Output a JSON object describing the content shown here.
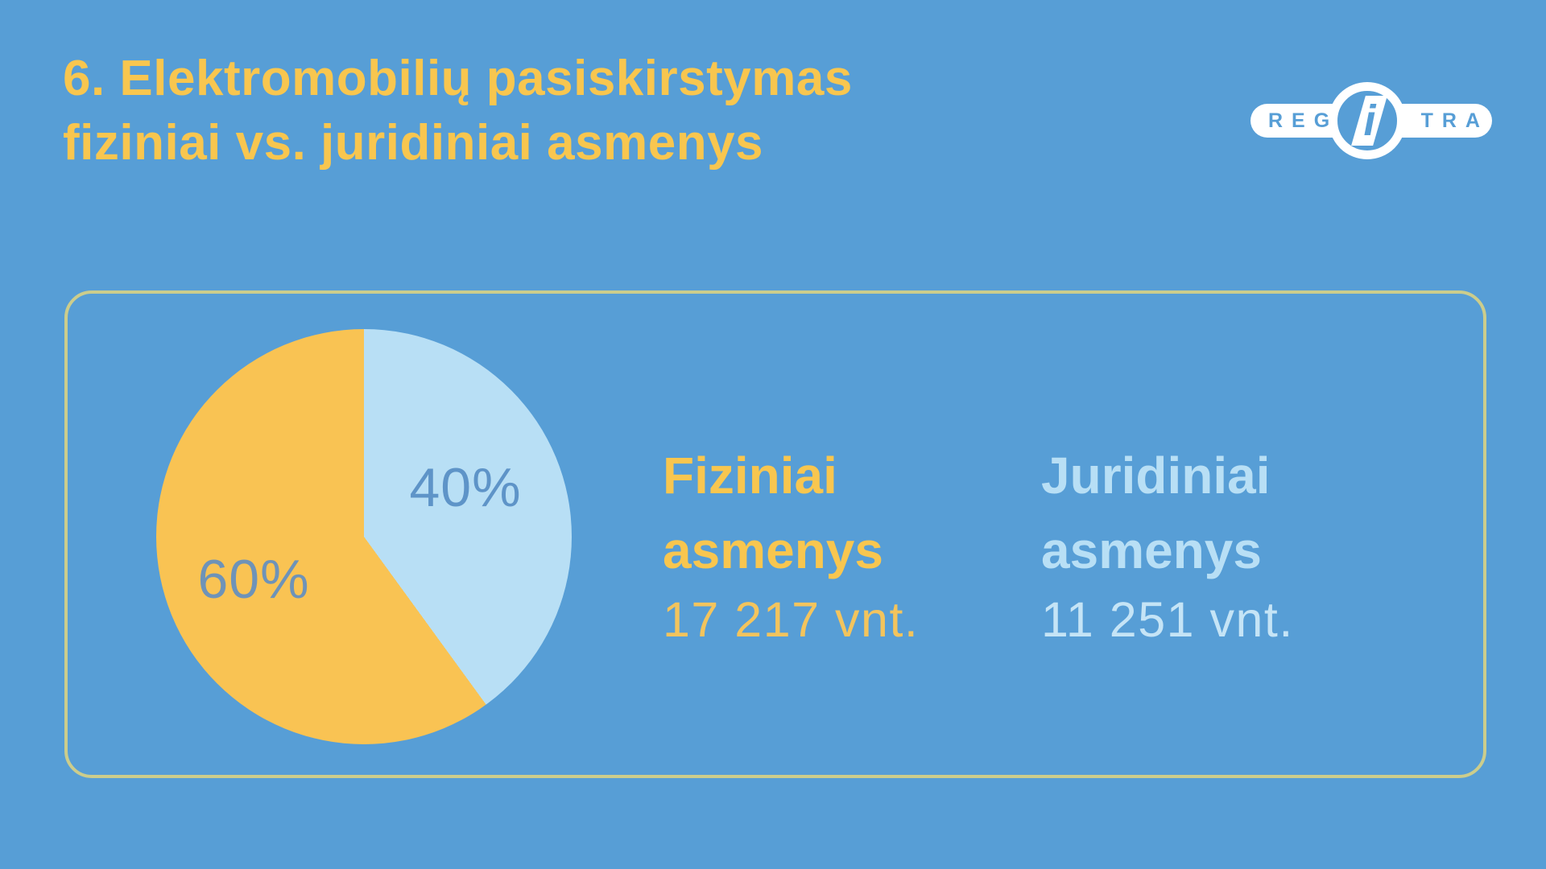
{
  "title": {
    "line1": "6. Elektromobilių pasiskirstymas",
    "line2": "fiziniai vs. juridiniai asmenys"
  },
  "logo": {
    "name": "Regitra",
    "left_text": "REG",
    "right_text": "TRA",
    "center_letter": "i"
  },
  "chart_data": {
    "type": "pie",
    "title": "6. Elektromobilių pasiskirstymas fiziniai vs. juridiniai asmenys",
    "start_angle_deg": 0,
    "direction": "clockwise",
    "slices": [
      {
        "name": "Juridiniai asmenys",
        "percent": 40,
        "label": "40%",
        "count_vnt": 11251,
        "color": "#B8DFF5"
      },
      {
        "name": "Fiziniai asmenys",
        "percent": 60,
        "label": "60%",
        "count_vnt": 17217,
        "color": "#F9C353"
      }
    ],
    "legend_position": "right"
  },
  "legend": [
    {
      "line1": "Fiziniai",
      "line2": "asmenys",
      "count": "17 217 vnt."
    },
    {
      "line1": "Juridiniai",
      "line2": "asmenys",
      "count": "11 251 vnt."
    }
  ],
  "colors": {
    "background": "#579ED6",
    "title_yellow": "#F8C64F",
    "pie_yellow": "#F9C353",
    "pie_light_blue": "#B8DFF5",
    "label_blue_on_light": "#5E94C8",
    "label_blue_on_yellow": "#6E93B8",
    "panel_border": "#CCCD8C",
    "logo_white": "#FFFFFF"
  }
}
